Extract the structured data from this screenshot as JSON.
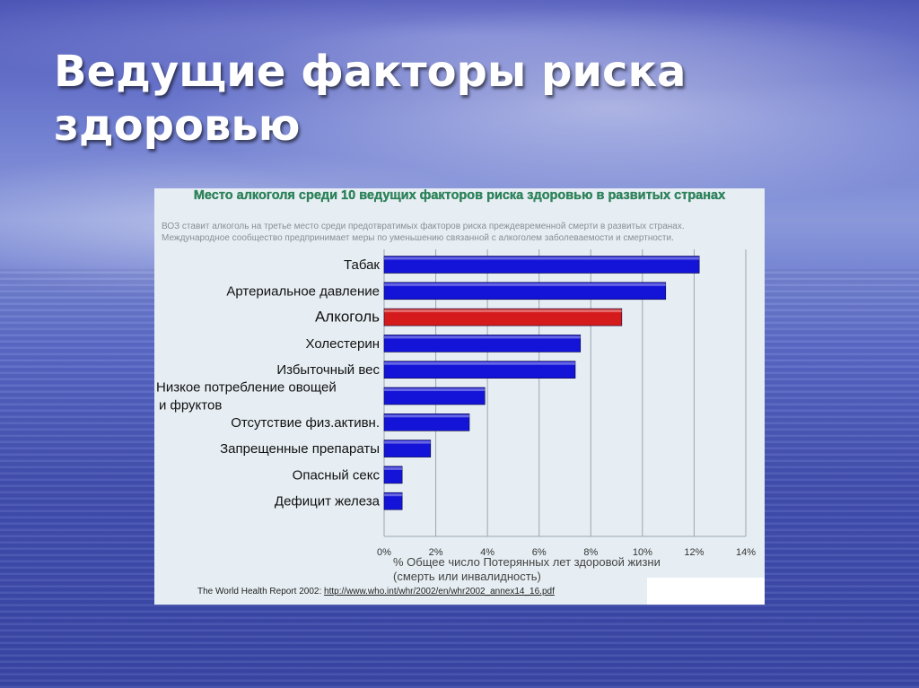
{
  "slide": {
    "title_line1": "Ведущие факторы риска",
    "title_line2": "здоровью"
  },
  "colors": {
    "bar": "#1414d8",
    "bar_highlight": "#d41a1a",
    "grid": "#9aa6b0",
    "header_green": "#2a8a5a"
  },
  "chart_data": {
    "type": "bar",
    "orientation": "horizontal",
    "title": "Место алкоголя среди 10 ведущих факторов риска здоровью в развитых странах",
    "subtitle_line1": "ВОЗ ставит алкоголь на третье место среди предотвратимых факторов риска преждевременной смерти в развитых странах.",
    "subtitle_line2": "Международное сообщество предпринимает меры по уменьшению связанной с алкоголем заболеваемости и смертности.",
    "categories": [
      "Табак",
      "Артериальное давление",
      "Алкоголь",
      "Холестерин",
      "Избыточный вес",
      "Низкое потребление овощей и фруктов",
      "Отсутствие физ.активн.",
      "Запрещенные препараты",
      "Опасный секс",
      "Дефицит железа"
    ],
    "category_lines": [
      [
        "Табак"
      ],
      [
        "Артериальное давление"
      ],
      [
        "Алкоголь"
      ],
      [
        "Холестерин"
      ],
      [
        "Избыточный вес"
      ],
      [
        "Низкое потребление овощей",
        "и фруктов"
      ],
      [
        "Отсутствие физ.активн."
      ],
      [
        "Запрещенные препараты"
      ],
      [
        "Опасный секс"
      ],
      [
        "Дефицит железа"
      ]
    ],
    "values": [
      12.2,
      10.9,
      9.2,
      7.6,
      7.4,
      3.9,
      3.3,
      1.8,
      0.7,
      0.7
    ],
    "highlight_index": 2,
    "xlim": [
      0,
      14
    ],
    "xticks": [
      "0%",
      "2%",
      "4%",
      "6%",
      "8%",
      "10%",
      "12%",
      "14%"
    ],
    "xlabel_line1": "% Общее число Потерянных лет здоровой жизни",
    "xlabel_line2": "(смерть или инвалидность)",
    "grid": true,
    "source_label": "The World Health Report 2002:",
    "source_url": "http://www.who.int/whr/2002/en/whr2002_annex14_16.pdf"
  }
}
